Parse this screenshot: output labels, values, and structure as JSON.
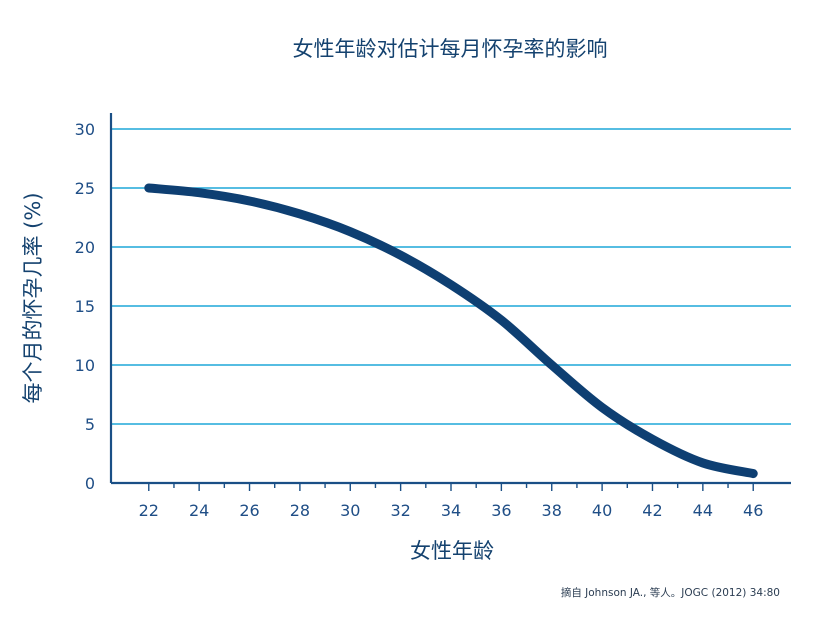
{
  "chart_data": {
    "type": "line",
    "title": "女性年龄对估计每月怀孕率的影响",
    "xlabel": "女性年龄",
    "ylabel": "每个月的怀孕几率 (%)",
    "xlim": [
      20.5,
      47.5
    ],
    "ylim": [
      0,
      30
    ],
    "x_ticks": [
      22,
      24,
      26,
      28,
      30,
      32,
      34,
      36,
      38,
      40,
      42,
      44,
      46
    ],
    "y_ticks": [
      0,
      5,
      10,
      15,
      20,
      25,
      30
    ],
    "grid": true,
    "series": [
      {
        "color": "#0e3f72",
        "x": [
          22,
          24,
          26,
          28,
          30,
          32,
          34,
          36,
          38,
          40,
          42,
          44,
          46
        ],
        "y": [
          25,
          24.6,
          23.9,
          22.8,
          21.3,
          19.3,
          16.8,
          13.8,
          10,
          6.4,
          3.7,
          1.7,
          0.8
        ]
      }
    ],
    "source": "摘自 Johnson JA., 等人。JOGC (2012) 34:80"
  }
}
